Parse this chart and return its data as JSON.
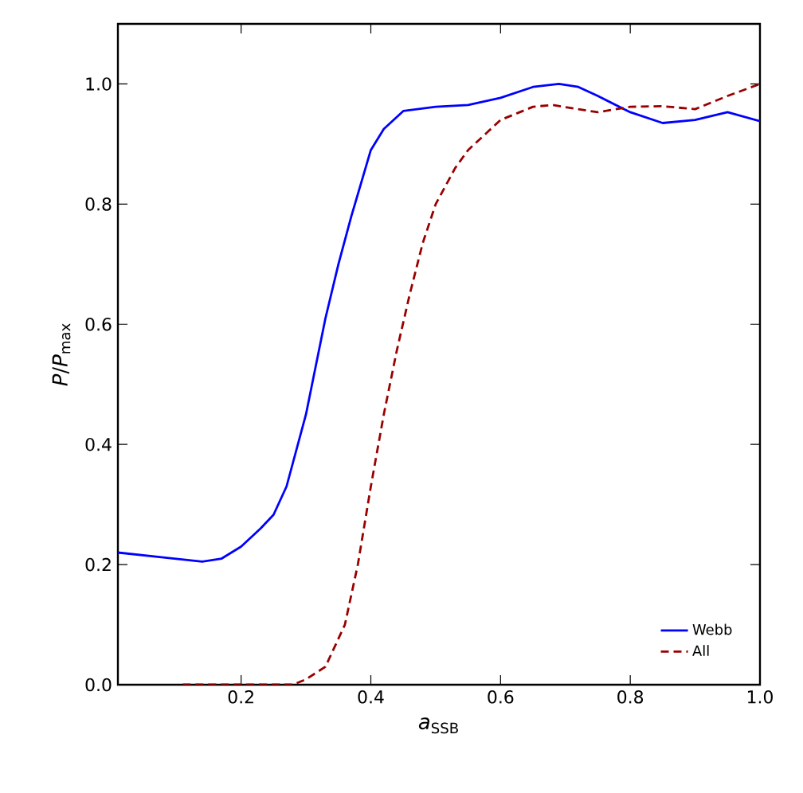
{
  "chart_data": {
    "type": "line",
    "xlabel": "*a*$_{SSB}$",
    "ylabel": "*P*/*P*$_{max}$",
    "xlim": [
      0.01,
      1.0
    ],
    "ylim": [
      0.0,
      1.1
    ],
    "xticks": [
      0.2,
      0.4,
      0.6,
      0.8,
      {
        "value": 1,
        "label": "1.0"
      }
    ],
    "yticks": [
      {
        "value": 0,
        "label": "0.0"
      },
      0.2,
      0.4,
      0.6,
      0.8,
      {
        "value": 1,
        "label": "1.0"
      }
    ],
    "legend": "bottom right",
    "grid": false,
    "marker": "none",
    "series": [
      {
        "name": "Webb",
        "color": "#0000ff",
        "line_style": "solid",
        "x": [
          0.01,
          0.08,
          0.14,
          0.17,
          0.2,
          0.23,
          0.25,
          0.27,
          0.3,
          0.33,
          0.35,
          0.37,
          0.4,
          0.42,
          0.45,
          0.5,
          0.55,
          0.6,
          0.65,
          0.69,
          0.72,
          0.75,
          0.8,
          0.85,
          0.9,
          0.95,
          1.0
        ],
        "values": [
          0.22,
          0.212,
          0.205,
          0.21,
          0.23,
          0.26,
          0.283,
          0.33,
          0.45,
          0.61,
          0.7,
          0.78,
          0.89,
          0.925,
          0.955,
          0.962,
          0.965,
          0.977,
          0.995,
          1.0,
          0.995,
          0.98,
          0.953,
          0.935,
          0.94,
          0.953,
          0.938
        ]
      },
      {
        "name": "All",
        "color": "#990000",
        "line_style": "dashed",
        "x": [
          0.11,
          0.2,
          0.28,
          0.3,
          0.33,
          0.36,
          0.38,
          0.4,
          0.42,
          0.44,
          0.46,
          0.48,
          0.5,
          0.53,
          0.55,
          0.58,
          0.6,
          0.65,
          0.68,
          0.72,
          0.75,
          0.8,
          0.85,
          0.9,
          0.95,
          1.0
        ],
        "values": [
          0.0,
          0.0,
          0.0,
          0.009,
          0.03,
          0.1,
          0.2,
          0.33,
          0.45,
          0.556,
          0.65,
          0.735,
          0.8,
          0.86,
          0.89,
          0.92,
          0.94,
          0.962,
          0.965,
          0.958,
          0.953,
          0.962,
          0.963,
          0.958,
          0.98,
          1.0
        ]
      }
    ]
  }
}
